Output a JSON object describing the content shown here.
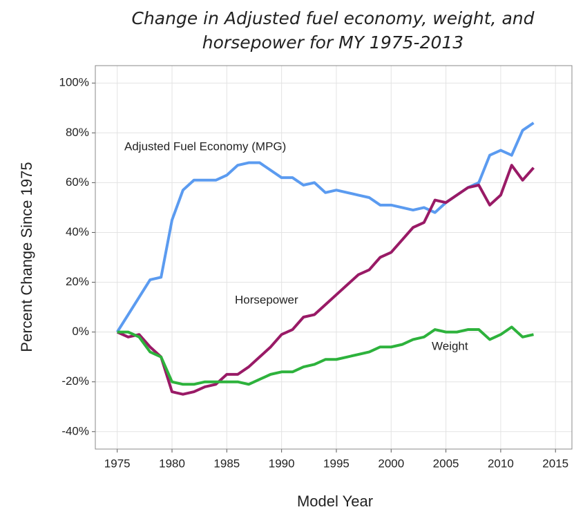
{
  "chart_data": {
    "type": "line",
    "title": [
      "Change in Adjusted fuel economy, weight, and",
      "horsepower for MY 1975-2013"
    ],
    "xlabel": "Model Year",
    "ylabel": "Percent Change Since 1975",
    "x": [
      1975,
      1976,
      1977,
      1978,
      1979,
      1980,
      1981,
      1982,
      1983,
      1984,
      1985,
      1986,
      1987,
      1988,
      1989,
      1990,
      1991,
      1992,
      1993,
      1994,
      1995,
      1996,
      1997,
      1998,
      1999,
      2000,
      2001,
      2002,
      2003,
      2004,
      2005,
      2006,
      2007,
      2008,
      2009,
      2010,
      2011,
      2012,
      2013
    ],
    "series": [
      {
        "name": "Adjusted Fuel Economy (MPG)",
        "color": "#5b9bf0",
        "values": [
          0,
          7,
          14,
          21,
          22,
          45,
          57,
          61,
          61,
          61,
          63,
          67,
          68,
          68,
          65,
          62,
          62,
          59,
          60,
          56,
          57,
          56,
          55,
          54,
          51,
          51,
          50,
          49,
          50,
          48,
          52,
          55,
          58,
          60,
          71,
          73,
          71,
          81,
          84
        ]
      },
      {
        "name": "Horsepower",
        "color": "#991a66",
        "values": [
          0,
          -2,
          -1,
          -6,
          -10,
          -24,
          -25,
          -24,
          -22,
          -21,
          -17,
          -17,
          -14,
          -10,
          -6,
          -1,
          1,
          6,
          7,
          11,
          15,
          19,
          23,
          25,
          30,
          32,
          37,
          42,
          44,
          53,
          52,
          55,
          58,
          59,
          51,
          55,
          67,
          61,
          66
        ]
      },
      {
        "name": "Weight",
        "color": "#2db23c",
        "values": [
          0,
          0,
          -2,
          -8,
          -10,
          -20,
          -21,
          -21,
          -20,
          -20,
          -20,
          -20,
          -21,
          -19,
          -17,
          -16,
          -16,
          -14,
          -13,
          -11,
          -11,
          -10,
          -9,
          -8,
          -6,
          -6,
          -5,
          -3,
          -2,
          1,
          0,
          0,
          1,
          1,
          -3,
          -1,
          2,
          -2,
          -1
        ]
      }
    ],
    "xlim": [
      1973,
      2016.5
    ],
    "xticks": [
      1975,
      1980,
      1985,
      1990,
      1995,
      2000,
      2005,
      2010,
      2015
    ],
    "ylim": [
      -47,
      107
    ],
    "yticks": [
      {
        "value": -40,
        "label": "-40%"
      },
      {
        "value": -20,
        "label": "-20%"
      },
      {
        "value": 0,
        "label": "0%"
      },
      {
        "value": 20,
        "label": "20%"
      },
      {
        "value": 40,
        "label": "40%"
      },
      {
        "value": 60,
        "label": "60%"
      },
      {
        "value": 80,
        "label": "80%"
      },
      {
        "value": 100,
        "label": "100%"
      }
    ],
    "grid": true
  }
}
